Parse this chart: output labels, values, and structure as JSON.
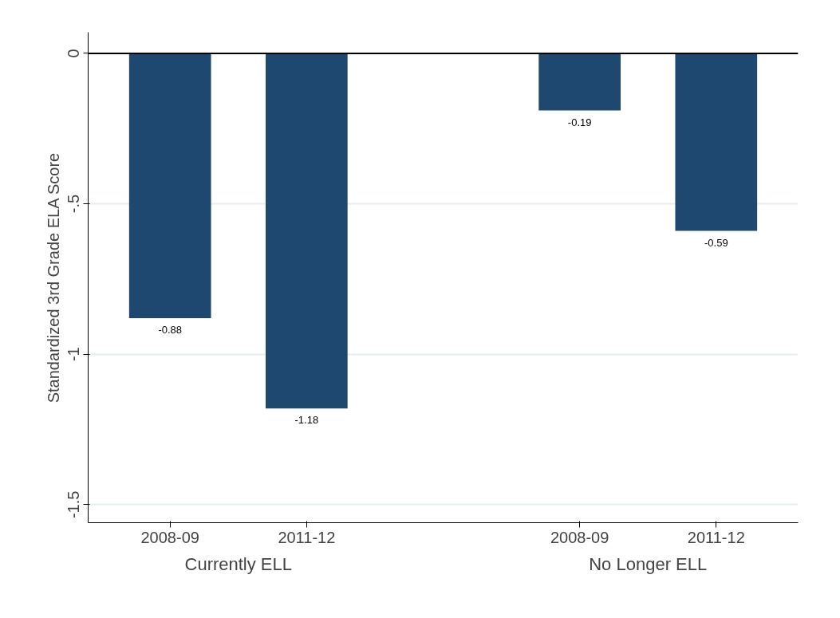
{
  "chart_data": {
    "type": "bar",
    "ylabel": "Standardized 3rd Grade ELA Score",
    "categories": [
      "2008-09",
      "2011-12",
      null,
      "2008-09",
      "2011-12"
    ],
    "values": [
      -0.88,
      -1.18,
      null,
      -0.19,
      -0.59
    ],
    "color": "#1f4870",
    "ylim": [
      -1.56,
      0.07
    ],
    "yticks": [
      {
        "value": 0,
        "label": "0"
      },
      {
        "value": -0.5,
        "label": "-.5"
      },
      {
        "value": -1,
        "label": "-1"
      },
      {
        "value": -1.5,
        "label": "-1.5"
      }
    ],
    "grid": "y",
    "data_labels": true,
    "ref_lines": [
      {
        "axis": "y",
        "value": 0,
        "color": "#000000"
      }
    ],
    "annotations": [
      "Currently ELL",
      "No Longer ELL"
    ]
  }
}
